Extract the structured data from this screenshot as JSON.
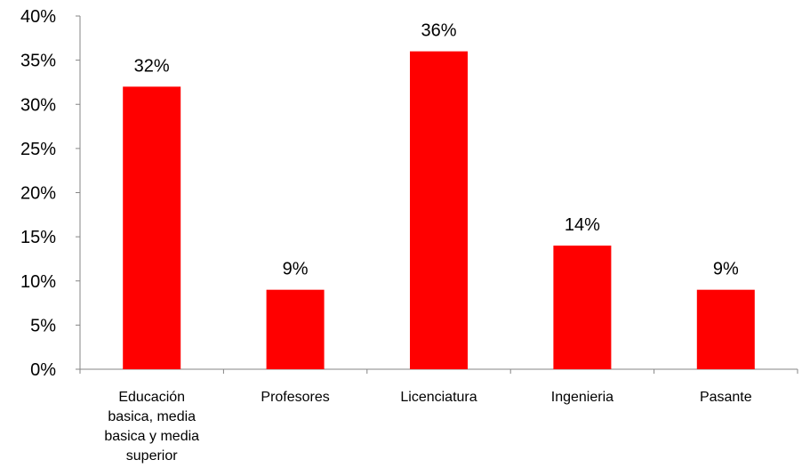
{
  "chart_data": {
    "type": "bar",
    "categories": [
      "Educación basica, media basica y media superior",
      "Profesores",
      "Licenciatura",
      "Ingenieria",
      "Pasante"
    ],
    "category_lines": [
      [
        "Educación",
        "basica, media",
        "basica y media",
        "superior"
      ],
      [
        "Profesores"
      ],
      [
        "Licenciatura"
      ],
      [
        "Ingenieria"
      ],
      [
        "Pasante"
      ]
    ],
    "values": [
      32,
      9,
      36,
      14,
      9
    ],
    "data_labels": [
      "32%",
      "9%",
      "36%",
      "14%",
      "9%"
    ],
    "yticks": [
      "0%",
      "5%",
      "10%",
      "15%",
      "20%",
      "25%",
      "30%",
      "35%",
      "40%"
    ],
    "ylim": [
      0,
      40
    ],
    "title": "",
    "xlabel": "",
    "ylabel": "",
    "bar_color": "#ff0000",
    "grid": false,
    "legend": "none"
  }
}
